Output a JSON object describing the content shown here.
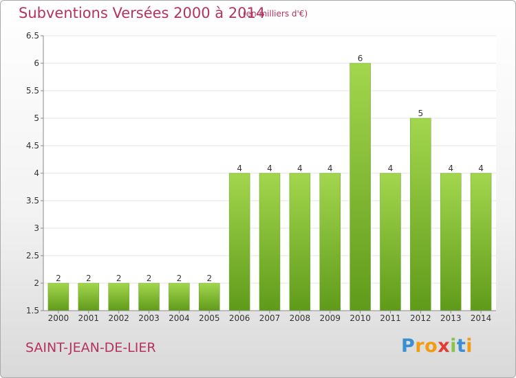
{
  "chart_data": {
    "type": "bar",
    "title": "Subventions Versées 2000 à 2014",
    "subtitle": "(en milliers d'€)",
    "categories": [
      "2000",
      "2001",
      "2002",
      "2003",
      "2004",
      "2005",
      "2006",
      "2007",
      "2008",
      "2009",
      "2010",
      "2011",
      "2012",
      "2013",
      "2014"
    ],
    "values": [
      2,
      2,
      2,
      2,
      2,
      2,
      4,
      4,
      4,
      4,
      6,
      4,
      5,
      4,
      4
    ],
    "data_labels": [
      "2",
      "2",
      "2",
      "2",
      "2",
      "2",
      "4",
      "4",
      "4",
      "4",
      "6",
      "4",
      "5",
      "4",
      "4"
    ],
    "ylim": [
      1.5,
      6.5
    ],
    "yticks": [
      1.5,
      2,
      2.5,
      3,
      3.5,
      4,
      4.5,
      5,
      5.5,
      6,
      6.5
    ],
    "ytick_labels": [
      "1.5",
      "2",
      "2.5",
      "3",
      "3.5",
      "4",
      "4.5",
      "5",
      "5.5",
      "6",
      "6.5"
    ],
    "grid": true,
    "legend": "none",
    "bar_color": "#7fba2f",
    "grid_color": "#e6e6e6"
  },
  "footer": {
    "commune": "SAINT-JEAN-DE-LIER",
    "brand": "Proxiti"
  }
}
